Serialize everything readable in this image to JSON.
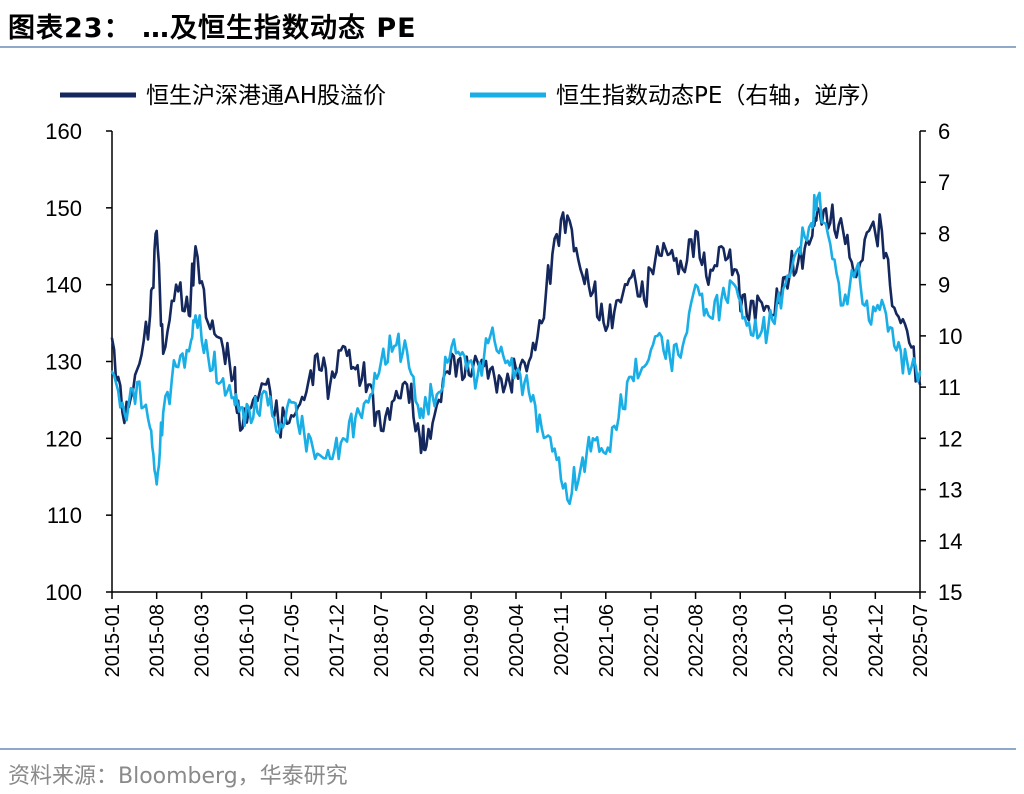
{
  "page": {
    "title": "图表23： …及恒生指数动态 PE",
    "source": "资料来源：Bloomberg，华泰研究"
  },
  "chart_data": {
    "type": "line",
    "title": "图表23： …及恒生指数动态 PE",
    "xlabel": "",
    "ylabel_left": "",
    "ylabel_right": "",
    "legend_position": "top",
    "grid": false,
    "y_left": {
      "range": [
        100,
        160
      ],
      "ticks": [
        "100",
        "110",
        "120",
        "130",
        "140",
        "150",
        "160"
      ]
    },
    "y_right": {
      "range": [
        6,
        15
      ],
      "inverted": true,
      "ticks": [
        "6",
        "7",
        "8",
        "9",
        "10",
        "11",
        "12",
        "13",
        "14",
        "15"
      ]
    },
    "x_ticks": [
      "2015-01",
      "2015-08",
      "2016-03",
      "2016-10",
      "2017-05",
      "2017-12",
      "2018-07",
      "2019-02",
      "2019-09",
      "2020-04",
      "2020-11",
      "2021-06",
      "2022-01",
      "2022-08",
      "2023-03",
      "2023-10",
      "2024-05",
      "2024-12",
      "2025-07"
    ],
    "series": [
      {
        "name": "恒生沪深港通AH股溢价",
        "axis": "left",
        "color": "#14285e",
        "x": [
          "2015-01",
          "2015-03",
          "2015-05",
          "2015-07",
          "2015-08",
          "2015-09",
          "2015-11",
          "2016-01",
          "2016-02",
          "2016-04",
          "2016-06",
          "2016-08",
          "2016-09",
          "2016-11",
          "2017-01",
          "2017-03",
          "2017-05",
          "2017-07",
          "2017-09",
          "2017-11",
          "2018-01",
          "2018-03",
          "2018-05",
          "2018-07",
          "2018-09",
          "2018-11",
          "2019-01",
          "2019-02",
          "2019-04",
          "2019-06",
          "2019-08",
          "2019-10",
          "2019-12",
          "2020-02",
          "2020-04",
          "2020-06",
          "2020-08",
          "2020-10",
          "2020-12",
          "2021-02",
          "2021-04",
          "2021-06",
          "2021-08",
          "2021-10",
          "2021-12",
          "2022-02",
          "2022-04",
          "2022-06",
          "2022-08",
          "2022-10",
          "2022-12",
          "2023-02",
          "2023-04",
          "2023-06",
          "2023-08",
          "2023-10",
          "2023-12",
          "2024-02",
          "2024-03",
          "2024-05",
          "2024-07",
          "2024-09",
          "2024-11",
          "2025-01",
          "2025-03",
          "2025-05",
          "2025-07"
        ],
        "values": [
          133,
          122,
          129,
          136,
          147,
          131,
          140,
          136,
          145,
          135,
          133,
          128,
          121,
          125,
          127,
          122,
          123,
          125,
          131,
          127,
          132,
          129,
          127,
          121,
          125,
          127,
          120,
          119,
          125,
          131,
          128,
          130,
          129,
          126,
          129,
          130,
          135,
          146,
          149,
          142,
          139,
          134,
          138,
          141,
          138,
          145,
          144,
          142,
          147,
          140,
          145,
          142,
          136,
          138,
          136,
          141,
          143,
          146,
          150,
          148,
          147,
          141,
          147,
          147,
          137,
          134,
          127
        ]
      },
      {
        "name": "恒生指数动态PE（右轴，逆序）",
        "axis": "right",
        "color": "#19aee6",
        "x": [
          "2015-01",
          "2015-03",
          "2015-05",
          "2015-07",
          "2015-08",
          "2015-09",
          "2015-11",
          "2016-01",
          "2016-02",
          "2016-04",
          "2016-06",
          "2016-08",
          "2016-09",
          "2016-11",
          "2017-01",
          "2017-03",
          "2017-05",
          "2017-07",
          "2017-09",
          "2017-11",
          "2018-01",
          "2018-03",
          "2018-05",
          "2018-07",
          "2018-09",
          "2018-11",
          "2019-01",
          "2019-02",
          "2019-04",
          "2019-06",
          "2019-08",
          "2019-10",
          "2019-12",
          "2020-02",
          "2020-04",
          "2020-06",
          "2020-08",
          "2020-10",
          "2020-12",
          "2021-02",
          "2021-04",
          "2021-06",
          "2021-08",
          "2021-10",
          "2021-12",
          "2022-02",
          "2022-04",
          "2022-06",
          "2022-08",
          "2022-10",
          "2022-12",
          "2023-02",
          "2023-04",
          "2023-06",
          "2023-08",
          "2023-10",
          "2023-12",
          "2024-02",
          "2024-03",
          "2024-05",
          "2024-07",
          "2024-09",
          "2024-11",
          "2025-01",
          "2025-03",
          "2025-05",
          "2025-07"
        ],
        "values": [
          10.7,
          11.5,
          10.9,
          11.8,
          12.9,
          11.5,
          10.6,
          10.3,
          9.6,
          10.4,
          10.9,
          11.2,
          11.4,
          11.6,
          11.1,
          11.9,
          11.3,
          11.9,
          12.3,
          12.4,
          12.0,
          11.6,
          11.3,
          10.5,
          10.2,
          10.3,
          11.6,
          11.3,
          11.1,
          10.2,
          10.4,
          10.8,
          10.0,
          10.4,
          10.7,
          11.1,
          11.8,
          12.2,
          13.2,
          12.6,
          12.0,
          12.3,
          11.6,
          10.8,
          10.6,
          10.0,
          10.4,
          10.2,
          9.0,
          9.6,
          9.3,
          9.0,
          9.8,
          10.0,
          9.7,
          9.0,
          8.3,
          7.8,
          7.3,
          8.2,
          9.4,
          8.7,
          9.7,
          9.3,
          10.2,
          10.5,
          10.7
        ]
      }
    ]
  }
}
